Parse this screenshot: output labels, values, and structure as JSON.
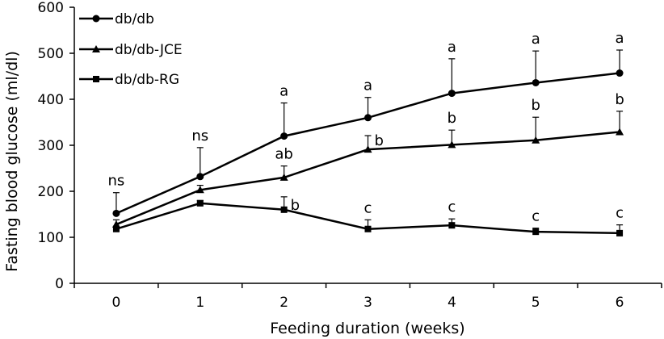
{
  "chart_data": {
    "type": "line",
    "title": "",
    "xlabel": "Feeding duration (weeks)",
    "ylabel": "Fasting blood glucose (ml/dl)",
    "x": [
      0,
      1,
      2,
      3,
      4,
      5,
      6
    ],
    "xtick_labels": [
      "0",
      "1",
      "2",
      "3",
      "4",
      "5",
      "6"
    ],
    "xlim": [
      -0.5,
      6.5
    ],
    "ylim": [
      0,
      600
    ],
    "yticks": [
      0,
      100,
      200,
      300,
      400,
      500,
      600
    ],
    "ytick_labels": [
      "0",
      "100",
      "200",
      "300",
      "400",
      "500",
      "600"
    ],
    "grid": false,
    "legend_position": "top-left",
    "series": [
      {
        "name": "db/db",
        "marker": "circle",
        "values": [
          152,
          232,
          320,
          360,
          413,
          436,
          457
        ],
        "error_upper": [
          45,
          63,
          72,
          44,
          75,
          69,
          50
        ],
        "labels": [
          "ns",
          "ns",
          "a",
          "a",
          "a",
          "a",
          "a"
        ]
      },
      {
        "name": "db/db-JCE",
        "marker": "triangle",
        "values": [
          128,
          203,
          230,
          291,
          301,
          311,
          329
        ],
        "error_upper": [
          10,
          10,
          25,
          30,
          32,
          50,
          45
        ],
        "labels": [
          "",
          "",
          "ab",
          "b",
          "b",
          "b",
          "b"
        ]
      },
      {
        "name": "db/db-RG",
        "marker": "square",
        "values": [
          118,
          174,
          160,
          118,
          126,
          112,
          109
        ],
        "error_upper": [
          6,
          6,
          28,
          20,
          14,
          8,
          18
        ],
        "labels": [
          "",
          "",
          "b",
          "c",
          "c",
          "c",
          "c"
        ]
      }
    ]
  }
}
